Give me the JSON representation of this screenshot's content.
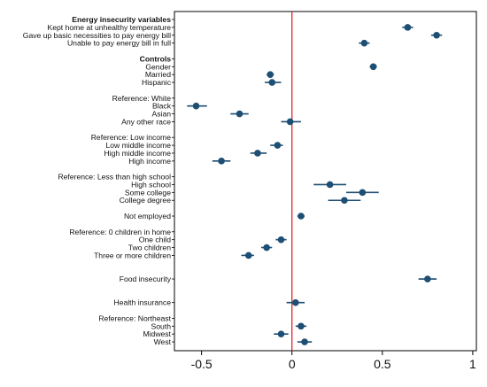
{
  "chart_data": {
    "type": "scatter",
    "subtype": "coefficient-plot",
    "title": "",
    "xlabel": "",
    "ylabel": "",
    "xlim": [
      -0.65,
      1.02
    ],
    "xticks": [
      -0.5,
      0,
      0.5,
      1
    ],
    "xtick_labels": [
      "-0.5",
      "0",
      "0.5",
      "1"
    ],
    "reference_line": {
      "x": 0,
      "color": "#e3232c"
    },
    "marker_color": "#1d4e73",
    "grid": false,
    "rows": [
      {
        "label": "Energy insecurity variables",
        "header": true,
        "bold": true
      },
      {
        "label": "Kept home at unhealthy temperature",
        "value": 0.64,
        "low": 0.61,
        "high": 0.67
      },
      {
        "label": "Gave up basic necessities to pay energy bill",
        "value": 0.8,
        "low": 0.77,
        "high": 0.83
      },
      {
        "label": "Unable to pay energy bill in full",
        "value": 0.4,
        "low": 0.37,
        "high": 0.43
      },
      {
        "gap": true
      },
      {
        "label": "Controls",
        "header": true,
        "bold": true
      },
      {
        "label": "Gender",
        "value": 0.45,
        "low": 0.43,
        "high": 0.47
      },
      {
        "label": "Married",
        "value": -0.12,
        "low": -0.14,
        "high": -0.1
      },
      {
        "label": "Hispanic",
        "value": -0.11,
        "low": -0.15,
        "high": -0.06
      },
      {
        "gap": true
      },
      {
        "label": "Reference: White",
        "header": true
      },
      {
        "label": "Black",
        "value": -0.53,
        "low": -0.58,
        "high": -0.47
      },
      {
        "label": "Asian",
        "value": -0.29,
        "low": -0.34,
        "high": -0.24
      },
      {
        "label": "Any other race",
        "value": -0.01,
        "low": -0.06,
        "high": 0.05
      },
      {
        "gap": true
      },
      {
        "label": "Reference: Low income",
        "header": true
      },
      {
        "label": "Low middle income",
        "value": -0.08,
        "low": -0.12,
        "high": -0.05
      },
      {
        "label": "High middle income",
        "value": -0.19,
        "low": -0.23,
        "high": -0.14
      },
      {
        "label": "High income",
        "value": -0.39,
        "low": -0.44,
        "high": -0.34
      },
      {
        "gap": true
      },
      {
        "label": "Reference: Less than high school",
        "header": true
      },
      {
        "label": "High school",
        "value": 0.21,
        "low": 0.12,
        "high": 0.3
      },
      {
        "label": "Some college",
        "value": 0.39,
        "low": 0.3,
        "high": 0.48
      },
      {
        "label": "College degree",
        "value": 0.29,
        "low": 0.2,
        "high": 0.38
      },
      {
        "gap": true
      },
      {
        "label": "Not employed",
        "value": 0.05,
        "low": 0.03,
        "high": 0.07
      },
      {
        "gap": true
      },
      {
        "label": "Reference: 0 children in home",
        "header": true
      },
      {
        "label": "One child",
        "value": -0.06,
        "low": -0.09,
        "high": -0.03
      },
      {
        "label": "Two children",
        "value": -0.14,
        "low": -0.17,
        "high": -0.11
      },
      {
        "label": "Three or more children",
        "value": -0.24,
        "low": -0.28,
        "high": -0.21
      },
      {
        "gap": true
      },
      {
        "gap": true
      },
      {
        "label": "Food insecurity",
        "value": 0.75,
        "low": 0.7,
        "high": 0.8
      },
      {
        "gap": true
      },
      {
        "gap": true
      },
      {
        "label": "Health insurance",
        "value": 0.02,
        "low": -0.03,
        "high": 0.07
      },
      {
        "gap": true
      },
      {
        "label": "Reference: Northeast",
        "header": true
      },
      {
        "label": "South",
        "value": 0.05,
        "low": 0.02,
        "high": 0.08
      },
      {
        "label": "Midwest",
        "value": -0.06,
        "low": -0.1,
        "high": -0.02
      },
      {
        "label": "West",
        "value": 0.07,
        "low": 0.03,
        "high": 0.11
      }
    ]
  }
}
